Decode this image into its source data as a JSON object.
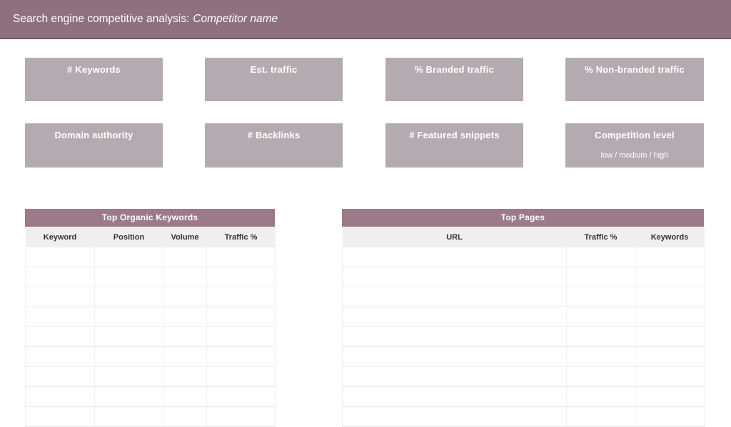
{
  "colors": {
    "top_bar": "#8E707E",
    "top_bar_border": "#6F5A65",
    "metric_box": "#B4ABB0",
    "table_title_bar": "#9C7A88",
    "column_header_bg": "#EFEFEF",
    "label_text": "#FFFFFF",
    "column_header_text": "#333333"
  },
  "header": {
    "title_prefix": "Search engine competitive analysis:",
    "competitor_name": "Competitor name"
  },
  "metrics": [
    {
      "label": "# Keywords"
    },
    {
      "label": "Est. traffic"
    },
    {
      "label": "% Branded traffic"
    },
    {
      "label": "% Non-branded traffic"
    },
    {
      "label": "Domain authority"
    },
    {
      "label": "# Backlinks"
    },
    {
      "label": "# Featured snippets"
    },
    {
      "label": "Competition level",
      "sublabel": "low / medium / high"
    }
  ],
  "tables": {
    "organic_keywords": {
      "title": "Top Organic Keywords",
      "columns": [
        "Keyword",
        "Position",
        "Volume",
        "Traffic %"
      ],
      "row_count": 9,
      "rows": []
    },
    "top_pages": {
      "title": "Top Pages",
      "columns": [
        "URL",
        "Traffic %",
        "Keywords"
      ],
      "row_count": 9,
      "rows": []
    }
  }
}
